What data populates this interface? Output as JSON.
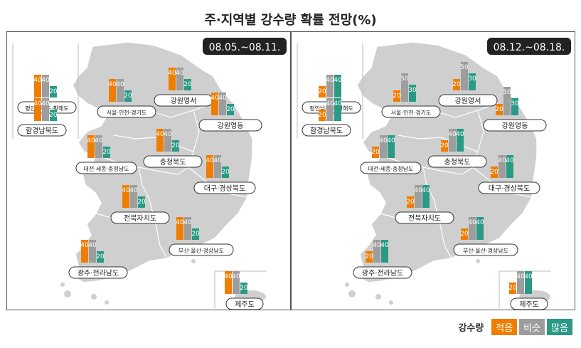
{
  "title": "주·지역별 강수량 확률 전망(%)",
  "legend": {
    "label": "강수량",
    "items": [
      {
        "name": "적음",
        "color": "#ef7d00"
      },
      {
        "name": "비슷",
        "color": "#9d9d9d"
      },
      {
        "name": "많음",
        "color": "#2a9a84"
      }
    ]
  },
  "chart_data": [
    {
      "type": "bar",
      "period": "08.05.~08.11.",
      "series_names": [
        "적음",
        "비슷",
        "많음"
      ],
      "regions": [
        {
          "name": "평안남북도·황해도",
          "values": [
            40,
            40,
            20
          ]
        },
        {
          "name": "함경남북도",
          "values": [
            40,
            40,
            20
          ]
        },
        {
          "name": "서울·인천·경기도",
          "values": [
            40,
            40,
            20
          ]
        },
        {
          "name": "강원영서",
          "values": [
            40,
            40,
            20
          ]
        },
        {
          "name": "강원영동",
          "values": [
            40,
            40,
            20
          ]
        },
        {
          "name": "충청북도",
          "values": [
            40,
            40,
            20
          ]
        },
        {
          "name": "대전·세종·충청남도",
          "values": [
            40,
            40,
            20
          ]
        },
        {
          "name": "대구·경상북도",
          "values": [
            40,
            40,
            20
          ]
        },
        {
          "name": "전북자치도",
          "values": [
            40,
            40,
            20
          ]
        },
        {
          "name": "부산·울산·경상남도",
          "values": [
            40,
            40,
            20
          ]
        },
        {
          "name": "광주·전라남도",
          "values": [
            40,
            40,
            20
          ]
        },
        {
          "name": "제주도",
          "values": [
            40,
            40,
            20
          ]
        }
      ]
    },
    {
      "type": "bar",
      "period": "08.12.~08.18.",
      "series_names": [
        "적음",
        "비슷",
        "많음"
      ],
      "regions": [
        {
          "name": "평안남북도·황해도",
          "values": [
            20,
            40,
            40
          ]
        },
        {
          "name": "함경남북도",
          "values": [
            20,
            40,
            40
          ]
        },
        {
          "name": "서울·인천·경기도",
          "values": [
            20,
            50,
            30
          ]
        },
        {
          "name": "강원영서",
          "values": [
            20,
            50,
            30
          ]
        },
        {
          "name": "강원영동",
          "values": [
            20,
            50,
            30
          ]
        },
        {
          "name": "충청북도",
          "values": [
            20,
            40,
            40
          ]
        },
        {
          "name": "대전·세종·충청남도",
          "values": [
            20,
            40,
            40
          ]
        },
        {
          "name": "대구·경상북도",
          "values": [
            20,
            40,
            40
          ]
        },
        {
          "name": "전북자치도",
          "values": [
            20,
            40,
            40
          ]
        },
        {
          "name": "부산·울산·경상남도",
          "values": [
            20,
            40,
            40
          ]
        },
        {
          "name": "광주·전라남도",
          "values": [
            20,
            40,
            40
          ]
        },
        {
          "name": "제주도",
          "values": [
            20,
            40,
            40
          ]
        }
      ]
    }
  ]
}
